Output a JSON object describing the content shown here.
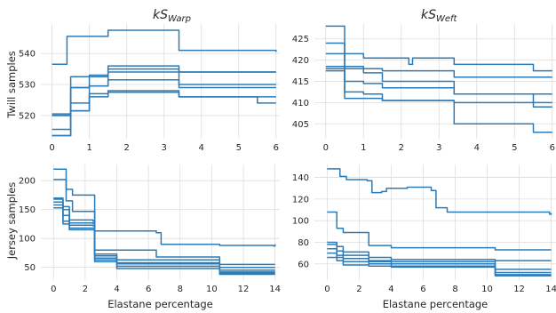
{
  "figure": {
    "row_labels": [
      "Twill samples",
      "Jersey samples"
    ],
    "col_titles": [
      {
        "main": "kS",
        "sub": "Warp"
      },
      {
        "main": "kS",
        "sub": "Weft"
      }
    ],
    "line_color": "#2c7bb6"
  },
  "chart_data": [
    {
      "type": "line",
      "panel": "twill-warp",
      "xlabel": "",
      "xlim": [
        -0.3,
        6.1
      ],
      "ylim": [
        512.5,
        549.5
      ],
      "xticks": [
        0,
        1,
        2,
        3,
        4,
        5,
        6
      ],
      "yticks": [
        520,
        530,
        540
      ],
      "series": [
        {
          "x": [
            0,
            0.4,
            0.5,
            1.0,
            1.5,
            3.4,
            6
          ],
          "values": [
            536.5,
            545.5,
            545.5,
            545.5,
            547.5,
            541,
            540.5
          ]
        },
        {
          "x": [
            0,
            0.4,
            0.5,
            1.0,
            1.5,
            3.4,
            6
          ],
          "values": [
            520,
            520,
            532.5,
            533,
            536,
            534,
            534
          ]
        },
        {
          "x": [
            0,
            0.4,
            0.5,
            1.0,
            1.5,
            3.4,
            6
          ],
          "values": [
            520.5,
            520.5,
            529,
            532.5,
            535,
            534,
            534
          ]
        },
        {
          "x": [
            0,
            0.4,
            0.5,
            1.0,
            1.5,
            3.4,
            6
          ],
          "values": [
            520,
            520,
            529,
            529.5,
            534,
            530,
            530
          ]
        },
        {
          "x": [
            0,
            0.4,
            0.5,
            1.0,
            1.5,
            3.4,
            6
          ],
          "values": [
            515.5,
            515.5,
            524,
            529.5,
            531.5,
            529,
            529
          ]
        },
        {
          "x": [
            0,
            0.4,
            0.5,
            1.0,
            1.5,
            3.4,
            6
          ],
          "values": [
            513.5,
            513.5,
            521.5,
            527,
            528,
            526,
            526
          ]
        },
        {
          "x": [
            0,
            0.4,
            0.5,
            1.0,
            1.5,
            3.4,
            5.5,
            6
          ],
          "values": [
            513.5,
            513.5,
            521.5,
            526,
            527.5,
            526,
            524,
            524
          ]
        }
      ]
    },
    {
      "type": "line",
      "panel": "twill-weft",
      "xlabel": "",
      "xlim": [
        -0.3,
        6.1
      ],
      "ylim": [
        401.5,
        428.5
      ],
      "xticks": [
        0,
        1,
        2,
        3,
        4,
        5,
        6
      ],
      "yticks": [
        405,
        410,
        415,
        420,
        425
      ],
      "series": [
        {
          "x": [
            0,
            0.4,
            0.5,
            1.0,
            1.5,
            2.2,
            2.3,
            3.4,
            5.5,
            6
          ],
          "values": [
            428,
            428,
            421.5,
            420.5,
            420.5,
            419,
            420.5,
            419,
            417.5,
            417.5
          ]
        },
        {
          "x": [
            0,
            0.4,
            0.5,
            1.0,
            1.5,
            3.4,
            6
          ],
          "values": [
            424,
            424,
            418.5,
            418,
            417.5,
            416,
            416
          ]
        },
        {
          "x": [
            0,
            0.4,
            0.5,
            1.0,
            1.5,
            3.4,
            6
          ],
          "values": [
            421.5,
            421.5,
            418,
            417,
            415,
            412,
            412
          ]
        },
        {
          "x": [
            0,
            0.4,
            0.5,
            1.0,
            1.5,
            3.4,
            5.5,
            6
          ],
          "values": [
            418.5,
            418.5,
            415,
            414.5,
            413.5,
            412,
            409,
            409
          ]
        },
        {
          "x": [
            0,
            0.4,
            0.5,
            1.0,
            1.5,
            3.4,
            6
          ],
          "values": [
            418,
            418,
            412.5,
            412,
            410.5,
            410,
            410
          ]
        },
        {
          "x": [
            0,
            0.4,
            0.5,
            1.0,
            1.5,
            3.4,
            5.5,
            6
          ],
          "values": [
            417.5,
            417.5,
            411,
            411,
            410.5,
            405,
            403,
            403
          ]
        }
      ]
    },
    {
      "type": "line",
      "panel": "jersey-warp",
      "xlabel": "Elastane percentage",
      "xlim": [
        -0.8,
        14.3
      ],
      "ylim": [
        28,
        228
      ],
      "xticks": [
        0,
        2,
        4,
        6,
        8,
        10,
        12,
        14
      ],
      "yticks": [
        50,
        100,
        150,
        200
      ],
      "series": [
        {
          "x": [
            0,
            0.5,
            0.8,
            1.2,
            2.5,
            2.6,
            6.5,
            6.8,
            10.5,
            13.9,
            14
          ],
          "values": [
            220,
            220,
            185,
            175,
            175,
            113,
            110,
            90,
            88,
            87,
            90
          ]
        },
        {
          "x": [
            0,
            0.5,
            0.8,
            1.2,
            2.5,
            2.6,
            6.5,
            10.5,
            14
          ],
          "values": [
            202,
            202,
            165,
            147,
            147,
            80,
            68,
            55,
            55
          ]
        },
        {
          "x": [
            0,
            0.4,
            0.6,
            1.0,
            2.5,
            2.6,
            4.0,
            10.5,
            14
          ],
          "values": [
            170,
            170,
            155,
            132,
            130,
            73,
            63,
            50,
            50
          ]
        },
        {
          "x": [
            0,
            0.4,
            0.6,
            1.0,
            2.5,
            2.6,
            4.0,
            10.5,
            14
          ],
          "values": [
            168,
            168,
            150,
            127,
            126,
            70,
            58,
            45,
            45
          ]
        },
        {
          "x": [
            0,
            0.4,
            0.6,
            1.0,
            2.5,
            2.6,
            4.0,
            10.5,
            14
          ],
          "values": [
            163,
            163,
            140,
            123,
            122,
            66,
            56,
            42,
            42
          ]
        },
        {
          "x": [
            0,
            0.4,
            0.6,
            1.0,
            2.5,
            2.6,
            4.0,
            10.5,
            14
          ],
          "values": [
            158,
            158,
            130,
            118,
            118,
            63,
            52,
            40,
            40
          ]
        },
        {
          "x": [
            0,
            0.4,
            0.6,
            1.0,
            2.5,
            2.6,
            4.0,
            10.5,
            14
          ],
          "values": [
            153,
            153,
            125,
            115,
            115,
            60,
            48,
            38,
            38
          ]
        }
      ]
    },
    {
      "type": "line",
      "panel": "jersey-weft",
      "xlabel": "Elastane percentage",
      "xlim": [
        -0.8,
        14.3
      ],
      "ylim": [
        45,
        152
      ],
      "xticks": [
        0,
        2,
        4,
        6,
        8,
        10,
        12,
        14
      ],
      "yticks": [
        60,
        80,
        100,
        120,
        140
      ],
      "series": [
        {
          "x": [
            0,
            0.5,
            0.8,
            1.2,
            2.5,
            2.8,
            3.4,
            3.7,
            5.0,
            6.5,
            6.8,
            7.5,
            10.5,
            13.9,
            14
          ],
          "values": [
            148,
            148,
            141,
            138,
            137,
            126,
            127,
            130,
            131,
            128,
            112,
            108,
            108,
            106,
            107
          ]
        },
        {
          "x": [
            0,
            0.4,
            0.6,
            1.0,
            2.5,
            2.6,
            4.0,
            10.5,
            14
          ],
          "values": [
            108,
            108,
            93,
            89,
            89,
            77,
            75,
            73,
            73
          ]
        },
        {
          "x": [
            0,
            0.4,
            0.6,
            1.0,
            2.5,
            2.6,
            4.0,
            10.5,
            14
          ],
          "values": [
            80,
            80,
            76,
            71,
            71,
            66,
            64,
            63,
            63
          ]
        },
        {
          "x": [
            0,
            0.4,
            0.6,
            1.0,
            2.5,
            2.6,
            4.0,
            10.3,
            10.5,
            14
          ],
          "values": [
            78,
            78,
            72,
            68,
            68,
            63,
            62,
            62,
            55,
            55
          ]
        },
        {
          "x": [
            0,
            0.4,
            0.6,
            1.0,
            2.5,
            2.6,
            4.0,
            10.3,
            10.5,
            14
          ],
          "values": [
            74,
            74,
            68,
            65,
            65,
            62,
            60,
            60,
            52,
            52
          ]
        },
        {
          "x": [
            0,
            0.4,
            0.6,
            1.0,
            2.5,
            2.6,
            4.0,
            10.3,
            10.5,
            14
          ],
          "values": [
            70,
            70,
            66,
            62,
            62,
            60,
            58,
            58,
            50,
            50
          ]
        },
        {
          "x": [
            0,
            0.4,
            0.6,
            1.0,
            2.5,
            2.6,
            4.0,
            10.3,
            10.5,
            14
          ],
          "values": [
            66,
            66,
            63,
            59,
            59,
            58,
            57,
            57,
            49,
            49
          ]
        }
      ]
    }
  ]
}
